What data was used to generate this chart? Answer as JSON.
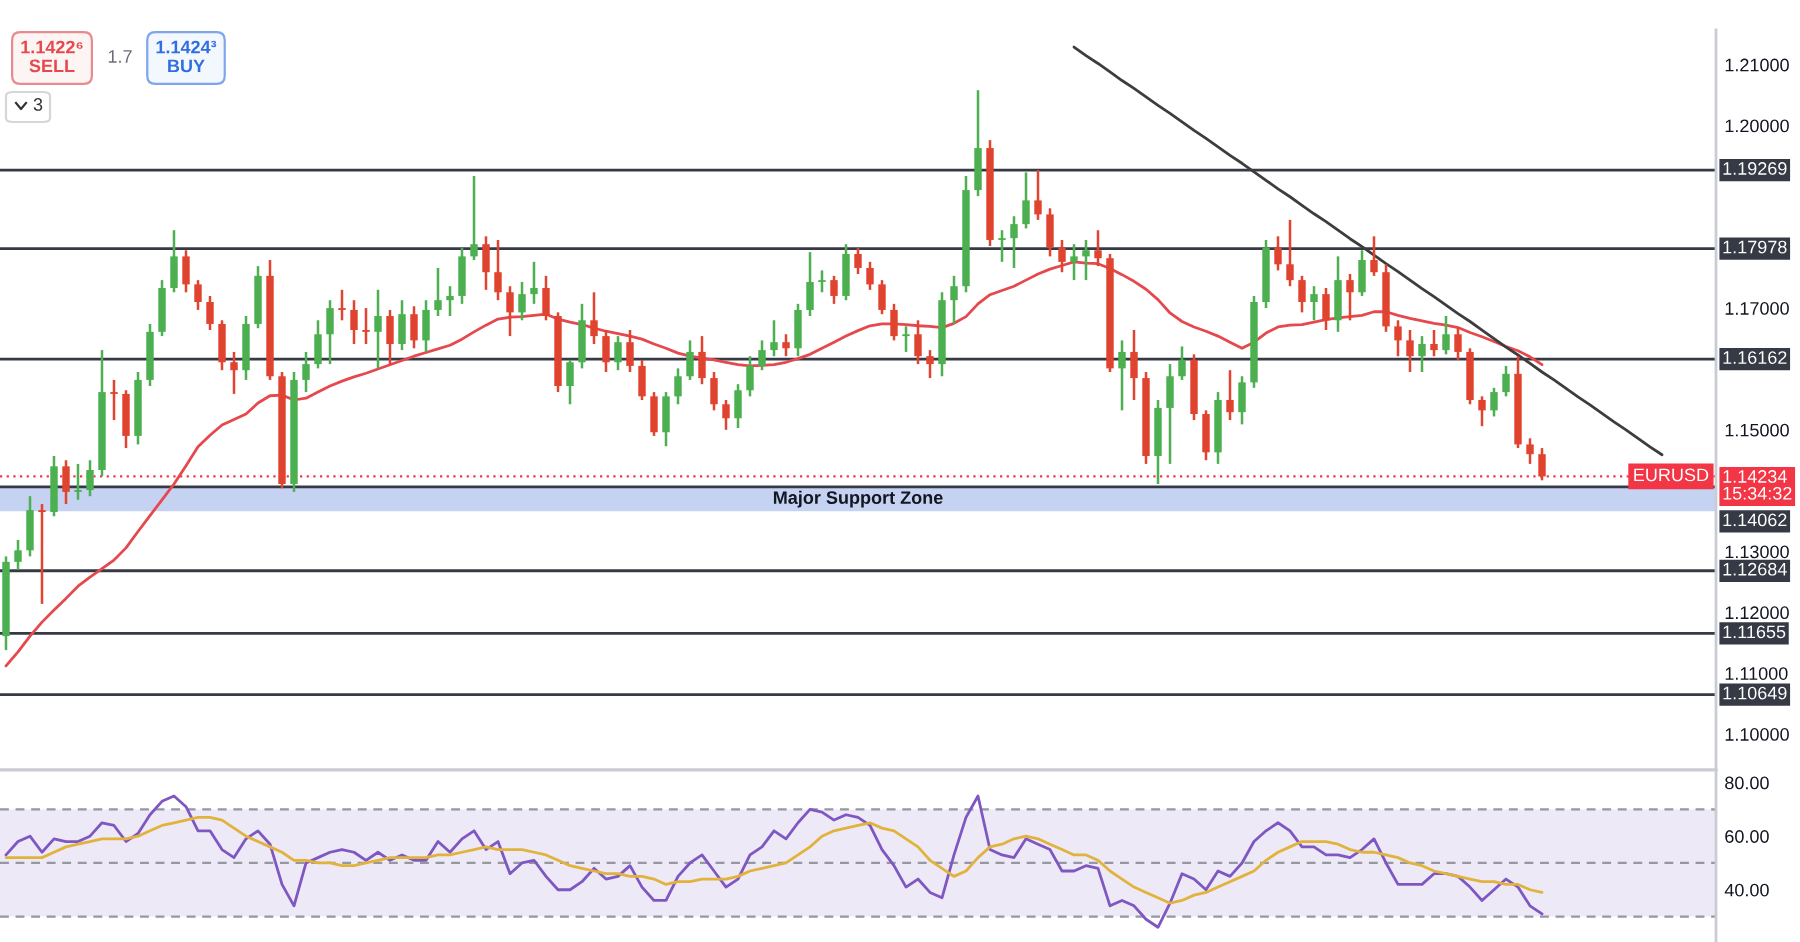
{
  "chart_data": [
    {
      "type": "candlestick",
      "categories": [
        null,
        null,
        null,
        null,
        null,
        null,
        null,
        null,
        null,
        null,
        null,
        null,
        null,
        null,
        null,
        null,
        null,
        null,
        null,
        null,
        null,
        null,
        null,
        null,
        null,
        null,
        null,
        null,
        null,
        null,
        null,
        null,
        null,
        null,
        null,
        null,
        null,
        null,
        null,
        null,
        null,
        null,
        null,
        null,
        null,
        null,
        null,
        null,
        null,
        null,
        null,
        null,
        null,
        null,
        null,
        null,
        null,
        null,
        null,
        null,
        null,
        null,
        null,
        null,
        null,
        null,
        null,
        null,
        null,
        null,
        null,
        null,
        null,
        null,
        null,
        null,
        null,
        null,
        null,
        null,
        null,
        null,
        null,
        null,
        null,
        null,
        null,
        null,
        null,
        null,
        null,
        null,
        null,
        null,
        null,
        null,
        null,
        null,
        null,
        null,
        null,
        null,
        null,
        null,
        null,
        null,
        null,
        null,
        null,
        null,
        null,
        null,
        null,
        null,
        null,
        null,
        null,
        null,
        null,
        null,
        null,
        null,
        null,
        null,
        null,
        null,
        null,
        null,
        null,
        null,
        null,
        null,
        null,
        null,
        null,
        null,
        null,
        null,
        null,
        null,
        null,
        null,
        null
      ],
      "ohlc": [
        [
          1.1161,
          1.1292,
          1.1138,
          1.1283
        ],
        [
          1.1283,
          1.1319,
          1.127,
          1.1302
        ],
        [
          1.1302,
          1.1391,
          1.1292,
          1.1368
        ],
        [
          1.1368,
          1.1378,
          1.1214,
          1.1365
        ],
        [
          1.1365,
          1.1457,
          1.1358,
          1.144
        ],
        [
          1.144,
          1.145,
          1.1378,
          1.1398
        ],
        [
          1.1398,
          1.1444,
          1.1385,
          1.1401
        ],
        [
          1.1401,
          1.145,
          1.1391,
          1.1434
        ],
        [
          1.1434,
          1.1631,
          1.1424,
          1.1562
        ],
        [
          1.1562,
          1.1582,
          1.1516,
          1.1559
        ],
        [
          1.1559,
          1.1565,
          1.147,
          1.149
        ],
        [
          1.149,
          1.1595,
          1.1476,
          1.1582
        ],
        [
          1.1582,
          1.1674,
          1.1572,
          1.1661
        ],
        [
          1.1661,
          1.1746,
          1.1654,
          1.1733
        ],
        [
          1.1733,
          1.1828,
          1.1726,
          1.1785
        ],
        [
          1.1785,
          1.1795,
          1.1726,
          1.1739
        ],
        [
          1.1739,
          1.1746,
          1.1697,
          1.171
        ],
        [
          1.171,
          1.172,
          1.1664,
          1.1674
        ],
        [
          1.1674,
          1.168,
          1.1598,
          1.1611
        ],
        [
          1.1611,
          1.1628,
          1.1559,
          1.1598
        ],
        [
          1.1598,
          1.1687,
          1.1582,
          1.1674
        ],
        [
          1.1674,
          1.1769,
          1.1667,
          1.1753
        ],
        [
          1.1753,
          1.1779,
          1.1582,
          1.1588
        ],
        [
          1.1588,
          1.1595,
          1.1404,
          1.1411
        ],
        [
          1.1411,
          1.1595,
          1.1398,
          1.1582
        ],
        [
          1.1582,
          1.1628,
          1.1562,
          1.1608
        ],
        [
          1.1608,
          1.168,
          1.1601,
          1.1657
        ],
        [
          1.1657,
          1.1713,
          1.1608,
          1.17
        ],
        [
          1.17,
          1.173,
          1.168,
          1.1697
        ],
        [
          1.1697,
          1.1713,
          1.1641,
          1.1664
        ],
        [
          1.1664,
          1.17,
          1.1641,
          1.1661
        ],
        [
          1.1661,
          1.173,
          1.1601,
          1.1687
        ],
        [
          1.1687,
          1.1697,
          1.1608,
          1.1641
        ],
        [
          1.1641,
          1.1713,
          1.1631,
          1.169
        ],
        [
          1.169,
          1.1703,
          1.1634,
          1.1647
        ],
        [
          1.1647,
          1.1713,
          1.1628,
          1.1697
        ],
        [
          1.1697,
          1.1766,
          1.1687,
          1.1713
        ],
        [
          1.1713,
          1.1736,
          1.1687,
          1.172
        ],
        [
          1.172,
          1.1799,
          1.1707,
          1.1785
        ],
        [
          1.1785,
          1.1917,
          1.1779,
          1.1805
        ],
        [
          1.1805,
          1.1818,
          1.173,
          1.1759
        ],
        [
          1.1759,
          1.1812,
          1.1713,
          1.1726
        ],
        [
          1.1726,
          1.1736,
          1.1654,
          1.1693
        ],
        [
          1.1693,
          1.1743,
          1.168,
          1.1723
        ],
        [
          1.1723,
          1.1776,
          1.1707,
          1.1733
        ],
        [
          1.1733,
          1.1753,
          1.168,
          1.1687
        ],
        [
          1.1687,
          1.1693,
          1.1562,
          1.1572
        ],
        [
          1.1572,
          1.1615,
          1.1542,
          1.1611
        ],
        [
          1.1611,
          1.1707,
          1.1601,
          1.168
        ],
        [
          1.168,
          1.1726,
          1.1641,
          1.1654
        ],
        [
          1.1654,
          1.1664,
          1.1595,
          1.1611
        ],
        [
          1.1611,
          1.1654,
          1.1598,
          1.1644
        ],
        [
          1.1644,
          1.1664,
          1.1595,
          1.1605
        ],
        [
          1.1605,
          1.1615,
          1.1549,
          1.1555
        ],
        [
          1.1555,
          1.1562,
          1.149,
          1.1496
        ],
        [
          1.1496,
          1.1562,
          1.1473,
          1.1555
        ],
        [
          1.1555,
          1.1601,
          1.1542,
          1.1588
        ],
        [
          1.1588,
          1.1647,
          1.1582,
          1.1628
        ],
        [
          1.1628,
          1.1654,
          1.1575,
          1.1585
        ],
        [
          1.1585,
          1.1595,
          1.1532,
          1.1542
        ],
        [
          1.1542,
          1.1549,
          1.15,
          1.1519
        ],
        [
          1.1519,
          1.1575,
          1.1503,
          1.1565
        ],
        [
          1.1565,
          1.1621,
          1.1555,
          1.1605
        ],
        [
          1.1605,
          1.1647,
          1.1598,
          1.1631
        ],
        [
          1.1631,
          1.168,
          1.1621,
          1.1644
        ],
        [
          1.1644,
          1.1657,
          1.1621,
          1.1634
        ],
        [
          1.1634,
          1.1707,
          1.1621,
          1.1697
        ],
        [
          1.1697,
          1.1792,
          1.1687,
          1.1743
        ],
        [
          1.1743,
          1.1762,
          1.1726,
          1.1746
        ],
        [
          1.1746,
          1.1753,
          1.1707,
          1.172
        ],
        [
          1.172,
          1.1805,
          1.1713,
          1.1789
        ],
        [
          1.1789,
          1.1799,
          1.1756,
          1.1766
        ],
        [
          1.1766,
          1.1776,
          1.173,
          1.1739
        ],
        [
          1.1739,
          1.1746,
          1.169,
          1.1697
        ],
        [
          1.1697,
          1.1707,
          1.1647,
          1.1654
        ],
        [
          1.1654,
          1.167,
          1.1628,
          1.1657
        ],
        [
          1.1657,
          1.168,
          1.1608,
          1.1621
        ],
        [
          1.1621,
          1.1631,
          1.1585,
          1.1608
        ],
        [
          1.1608,
          1.1726,
          1.1588,
          1.1713
        ],
        [
          1.1713,
          1.1753,
          1.1674,
          1.1736
        ],
        [
          1.1736,
          1.1917,
          1.1726,
          1.1894
        ],
        [
          1.1894,
          1.2058,
          1.1884,
          1.1963
        ],
        [
          1.1963,
          1.1976,
          1.1802,
          1.1812
        ],
        [
          1.1812,
          1.1828,
          1.1776,
          1.1815
        ],
        [
          1.1815,
          1.1851,
          1.1766,
          1.1838
        ],
        [
          1.1838,
          1.1923,
          1.1831,
          1.1877
        ],
        [
          1.1877,
          1.1927,
          1.1845,
          1.1854
        ],
        [
          1.1854,
          1.1864,
          1.1785,
          1.1799
        ],
        [
          1.1799,
          1.1812,
          1.1759,
          1.1776
        ],
        [
          1.1776,
          1.1805,
          1.1746,
          1.1785
        ],
        [
          1.1785,
          1.1812,
          1.1746,
          1.1795
        ],
        [
          1.1795,
          1.1828,
          1.1769,
          1.1782
        ],
        [
          1.1782,
          1.1789,
          1.1595,
          1.1601
        ],
        [
          1.1601,
          1.1647,
          1.1532,
          1.1628
        ],
        [
          1.1628,
          1.1664,
          1.1549,
          1.1585
        ],
        [
          1.1585,
          1.1595,
          1.1444,
          1.1457
        ],
        [
          1.1457,
          1.1549,
          1.1411,
          1.1536
        ],
        [
          1.1536,
          1.1608,
          1.1444,
          1.1588
        ],
        [
          1.1588,
          1.1637,
          1.1582,
          1.1615
        ],
        [
          1.1615,
          1.1624,
          1.1516,
          1.1526
        ],
        [
          1.1526,
          1.1532,
          1.145,
          1.1463
        ],
        [
          1.1463,
          1.1562,
          1.1444,
          1.1549
        ],
        [
          1.1549,
          1.1598,
          1.1516,
          1.1529
        ],
        [
          1.1529,
          1.1588,
          1.1509,
          1.1578
        ],
        [
          1.1578,
          1.172,
          1.1569,
          1.171
        ],
        [
          1.171,
          1.1812,
          1.17,
          1.1799
        ],
        [
          1.1799,
          1.1818,
          1.1762,
          1.1772
        ],
        [
          1.1772,
          1.1845,
          1.1736,
          1.1746
        ],
        [
          1.1746,
          1.1753,
          1.1693,
          1.171
        ],
        [
          1.171,
          1.1736,
          1.168,
          1.1723
        ],
        [
          1.1723,
          1.1733,
          1.1664,
          1.168
        ],
        [
          1.168,
          1.1785,
          1.1661,
          1.1746
        ],
        [
          1.1746,
          1.1756,
          1.168,
          1.1726
        ],
        [
          1.1726,
          1.1795,
          1.172,
          1.1779
        ],
        [
          1.1779,
          1.1818,
          1.1753,
          1.1759
        ],
        [
          1.1759,
          1.1772,
          1.1661,
          1.167
        ],
        [
          1.167,
          1.168,
          1.1621,
          1.1647
        ],
        [
          1.1647,
          1.1664,
          1.1595,
          1.1621
        ],
        [
          1.1621,
          1.1654,
          1.1595,
          1.1641
        ],
        [
          1.1641,
          1.1664,
          1.1621,
          1.1631
        ],
        [
          1.1631,
          1.1687,
          1.1624,
          1.1657
        ],
        [
          1.1657,
          1.1667,
          1.1615,
          1.1628
        ],
        [
          1.1628,
          1.1634,
          1.1542,
          1.1549
        ],
        [
          1.1549,
          1.1555,
          1.1506,
          1.1532
        ],
        [
          1.1532,
          1.1569,
          1.1522,
          1.1562
        ],
        [
          1.1562,
          1.1605,
          1.1555,
          1.1592
        ],
        [
          1.1592,
          1.1621,
          1.147,
          1.1476
        ],
        [
          1.1476,
          1.1486,
          1.1444,
          1.146
        ],
        [
          1.146,
          1.147,
          1.1417,
          1.14234
        ],
        null,
        null,
        null,
        null,
        null,
        null,
        null,
        null,
        null,
        null,
        null,
        null,
        null,
        null
      ],
      "colors": [
        "#4caf50",
        "#4caf50",
        "#4caf50",
        "#e0432f",
        "#4caf50",
        "#e0432f",
        "#4caf50",
        "#4caf50",
        "#4caf50",
        "#e0432f",
        "#e0432f",
        "#4caf50",
        "#4caf50",
        "#4caf50",
        "#4caf50",
        "#e0432f",
        "#e0432f",
        "#e0432f",
        "#e0432f",
        "#e0432f",
        "#4caf50",
        "#4caf50",
        "#e0432f",
        "#e0432f",
        "#4caf50",
        "#4caf50",
        "#4caf50",
        "#4caf50",
        "#e0432f",
        "#e0432f",
        "#e0432f",
        "#4caf50",
        "#e0432f",
        "#4caf50",
        "#e0432f",
        "#4caf50",
        "#4caf50",
        "#4caf50",
        "#4caf50",
        "#4caf50",
        "#e0432f",
        "#e0432f",
        "#e0432f",
        "#4caf50",
        "#4caf50",
        "#e0432f",
        "#e0432f",
        "#4caf50",
        "#4caf50",
        "#e0432f",
        "#e0432f",
        "#4caf50",
        "#e0432f",
        "#e0432f",
        "#e0432f",
        "#4caf50",
        "#4caf50",
        "#4caf50",
        "#e0432f",
        "#e0432f",
        "#e0432f",
        "#4caf50",
        "#4caf50",
        "#4caf50",
        "#4caf50",
        "#e0432f",
        "#4caf50",
        "#4caf50",
        "#4caf50",
        "#e0432f",
        "#4caf50",
        "#e0432f",
        "#e0432f",
        "#e0432f",
        "#e0432f",
        "#4caf50",
        "#e0432f",
        "#e0432f",
        "#4caf50",
        "#4caf50",
        "#4caf50",
        "#4caf50",
        "#e0432f",
        "#4caf50",
        "#4caf50",
        "#4caf50",
        "#e0432f",
        "#e0432f",
        "#e0432f",
        "#4caf50",
        "#4caf50",
        "#e0432f",
        "#e0432f",
        "#4caf50",
        "#e0432f",
        "#e0432f",
        "#4caf50",
        "#4caf50",
        "#4caf50",
        "#e0432f",
        "#e0432f",
        "#4caf50",
        "#e0432f",
        "#4caf50",
        "#4caf50",
        "#4caf50",
        "#e0432f",
        "#e0432f",
        "#e0432f",
        "#4caf50",
        "#e0432f",
        "#4caf50",
        "#e0432f",
        "#4caf50",
        "#e0432f",
        "#e0432f",
        "#e0432f",
        "#e0432f",
        "#4caf50",
        "#e0432f",
        "#4caf50",
        "#e0432f",
        "#e0432f",
        "#e0432f",
        "#4caf50",
        "#4caf50",
        "#e0432f",
        "#e0432f",
        "#e0432f",
        null,
        null,
        null,
        null,
        null,
        null,
        null,
        null,
        null,
        null,
        null,
        null,
        null,
        null
      ],
      "series": [
        {
          "type": "line",
          "color": "#e5484d",
          "values": [
            1.1112,
            1.1135,
            1.1161,
            1.1184,
            1.1204,
            1.1223,
            1.1243,
            1.1258,
            1.1272,
            1.1286,
            1.1306,
            1.1333,
            1.1359,
            1.1385,
            1.1411,
            1.1441,
            1.1472,
            1.1491,
            1.1508,
            1.1517,
            1.1526,
            1.1544,
            1.1556,
            1.1557,
            1.1549,
            1.1552,
            1.1562,
            1.1572,
            1.158,
            1.1587,
            1.1593,
            1.16,
            1.1607,
            1.1614,
            1.1621,
            1.1627,
            1.1633,
            1.1639,
            1.1649,
            1.1661,
            1.1672,
            1.1682,
            1.1685,
            1.1686,
            1.1688,
            1.169,
            1.1682,
            1.1677,
            1.1673,
            1.1667,
            1.1662,
            1.1658,
            1.1654,
            1.1649,
            1.1641,
            1.1634,
            1.1626,
            1.1621,
            1.1618,
            1.1615,
            1.1611,
            1.1607,
            1.1605,
            1.1606,
            1.1607,
            1.1611,
            1.1617,
            1.1624,
            1.1634,
            1.1644,
            1.1654,
            1.1663,
            1.1671,
            1.1674,
            1.1674,
            1.1673,
            1.1671,
            1.167,
            1.1668,
            1.1675,
            1.1686,
            1.1707,
            1.1722,
            1.1729,
            1.1736,
            1.1746,
            1.1756,
            1.1764,
            1.177,
            1.1776,
            1.1774,
            1.1773,
            1.1765,
            1.1755,
            1.1744,
            1.1731,
            1.1714,
            1.1692,
            1.1678,
            1.1669,
            1.1662,
            1.1654,
            1.1644,
            1.1634,
            1.1644,
            1.1659,
            1.1669,
            1.1672,
            1.1673,
            1.1677,
            1.1681,
            1.1684,
            1.1686,
            1.1688,
            1.1694,
            1.1694,
            1.1688,
            1.1683,
            1.1679,
            1.1675,
            1.1672,
            1.1668,
            1.166,
            1.1653,
            1.1645,
            1.1637,
            1.163,
            1.162,
            1.1607,
            null,
            null,
            null,
            null,
            null,
            null,
            null,
            null,
            null,
            null,
            null,
            null,
            null,
            null
          ]
        },
        {
          "type": "line",
          "color": "#3d3d3d",
          "values": [
            null,
            null,
            null,
            null,
            null,
            null,
            null,
            null,
            null,
            null,
            null,
            null,
            null,
            null,
            null,
            null,
            null,
            null,
            null,
            null,
            null,
            null,
            null,
            null,
            null,
            null,
            null,
            null,
            null,
            null,
            null,
            null,
            null,
            null,
            null,
            null,
            null,
            null,
            null,
            null,
            null,
            null,
            null,
            null,
            null,
            null,
            null,
            null,
            null,
            null,
            null,
            null,
            null,
            null,
            null,
            null,
            null,
            null,
            null,
            null,
            null,
            null,
            null,
            null,
            null,
            null,
            null,
            null,
            null,
            null,
            null,
            null,
            null,
            null,
            null,
            null,
            null,
            null,
            null,
            null,
            null,
            null,
            null,
            null,
            null,
            null,
            null,
            null,
            null,
            1.2129,
            1.2115,
            1.2102,
            1.2088,
            1.2074,
            1.2061,
            1.2047,
            1.2033,
            1.202,
            1.2006,
            1.1992,
            1.1979,
            1.1965,
            1.1951,
            1.1938,
            1.1924,
            1.191,
            1.1896,
            1.1883,
            1.1869,
            1.1855,
            1.1842,
            1.1828,
            1.1814,
            1.1801,
            1.1787,
            1.1773,
            1.176,
            1.1746,
            1.1732,
            1.1719,
            1.1705,
            1.1691,
            1.1678,
            1.1664,
            1.165,
            1.1636,
            1.1623,
            1.1609,
            1.1595,
            1.1582,
            1.1568,
            1.1554,
            1.1541,
            1.1527,
            1.1513,
            1.15,
            1.1486,
            1.1472,
            1.1459,
            null,
            null,
            null,
            null
          ]
        }
      ],
      "ylim": [
        1.0941,
        1.2157
      ],
      "yticks": [
        {
          "value": 1.1,
          "label": "1.10000"
        },
        {
          "value": 1.11,
          "label": "1.11000"
        },
        {
          "value": 1.12,
          "label": "1.12000"
        },
        {
          "value": 1.13,
          "label": "1.13000"
        },
        {
          "value": 1.15,
          "label": "1.15000"
        },
        {
          "value": 1.17,
          "label": "1.17000"
        },
        {
          "value": 1.2,
          "label": "1.20000"
        },
        {
          "value": 1.21,
          "label": "1.21000"
        }
      ],
      "ref_lines": [
        {
          "axis": "y",
          "value": 1.19269,
          "label": "1.19269",
          "color": "#363a45"
        },
        {
          "axis": "y",
          "value": 1.17978,
          "label": "1.17978",
          "color": "#363a45"
        },
        {
          "axis": "y",
          "value": 1.16162,
          "label": "1.16162",
          "color": "#363a45"
        },
        {
          "axis": "y",
          "value": 1.14062,
          "label": "1.14062",
          "color": "#363a45"
        },
        {
          "axis": "y",
          "value": 1.12684,
          "label": "1.12684",
          "color": "#363a45"
        },
        {
          "axis": "y",
          "value": 1.11655,
          "label": "1.11655",
          "color": "#363a45"
        },
        {
          "axis": "y",
          "value": 1.10649,
          "label": "1.10649",
          "color": "#363a45"
        },
        {
          "axis": "y",
          "value": 1.14234,
          "label": "1.14234\n15:34:32",
          "color": "#f23645",
          "line_style": "dotted"
        }
      ],
      "bands": [
        {
          "axis": "y",
          "from": 1.1366,
          "to": 1.14062,
          "label": "Major Support Zone",
          "color": "#c5d2f2"
        }
      ],
      "annotations": [
        {
          "text": "EURUSD",
          "y": 1.14234
        },
        "1.1422⁶\nSELL",
        "1.7",
        "1.1424³\nBUY",
        "3"
      ],
      "tick_labels": "y"
    },
    {
      "type": "line",
      "categories": [
        null,
        null,
        null,
        null,
        null,
        null,
        null,
        null,
        null,
        null,
        null,
        null,
        null,
        null,
        null,
        null,
        null,
        null,
        null,
        null,
        null,
        null,
        null,
        null,
        null,
        null,
        null,
        null,
        null,
        null,
        null,
        null,
        null,
        null,
        null,
        null,
        null,
        null,
        null,
        null,
        null,
        null,
        null,
        null,
        null,
        null,
        null,
        null,
        null,
        null,
        null,
        null,
        null,
        null,
        null,
        null,
        null,
        null,
        null,
        null,
        null,
        null,
        null,
        null,
        null,
        null,
        null,
        null,
        null,
        null,
        null,
        null,
        null,
        null,
        null,
        null,
        null,
        null,
        null,
        null,
        null,
        null,
        null,
        null,
        null,
        null,
        null,
        null,
        null,
        null,
        null,
        null,
        null,
        null,
        null,
        null,
        null,
        null,
        null,
        null,
        null,
        null,
        null,
        null,
        null,
        null,
        null,
        null,
        null,
        null,
        null,
        null,
        null,
        null,
        null,
        null,
        null,
        null,
        null,
        null,
        null,
        null,
        null,
        null,
        null,
        null,
        null,
        null,
        null,
        null,
        null,
        null,
        null,
        null,
        null,
        null,
        null,
        null,
        null,
        null,
        null,
        null,
        null
      ],
      "series": [
        {
          "color": "#7e57c2",
          "values": [
            53,
            58,
            60,
            54,
            59,
            58,
            58,
            60,
            65,
            64,
            58,
            61,
            68,
            73,
            75,
            71,
            62,
            62,
            55,
            52,
            59,
            62,
            57,
            42,
            34,
            50,
            52,
            54,
            55,
            54,
            51,
            54,
            51,
            53,
            51,
            51,
            58,
            54,
            59,
            62,
            55,
            58,
            46,
            50,
            51,
            45,
            40,
            40,
            43,
            48,
            44,
            45,
            49,
            41,
            36,
            36,
            45,
            50,
            53,
            47,
            41,
            44,
            53,
            56,
            62,
            59,
            65,
            70,
            69,
            66,
            68,
            67,
            64,
            55,
            49,
            41,
            44,
            39,
            37,
            53,
            67,
            75,
            55,
            53,
            52,
            59,
            57,
            55,
            47,
            47,
            49,
            48,
            34,
            36,
            34,
            29,
            26,
            35,
            46,
            44,
            40,
            47,
            45,
            50,
            58,
            62,
            65,
            62,
            56,
            56,
            53,
            53,
            52,
            55,
            59,
            50,
            42,
            42,
            42,
            46,
            46,
            45,
            41,
            36,
            40,
            44,
            41,
            34,
            31,
            null,
            null,
            null,
            null,
            null,
            null,
            null,
            null,
            null,
            null,
            null,
            null,
            null,
            null
          ]
        },
        {
          "color": "#e2b33c",
          "values": [
            52,
            52,
            52,
            52,
            54,
            56,
            57,
            58,
            59,
            59,
            59,
            60,
            62,
            64,
            65,
            66,
            67,
            67,
            66,
            63,
            60,
            58,
            56,
            54,
            51,
            51,
            50,
            50,
            49,
            49,
            50,
            51,
            52,
            52,
            52,
            52,
            53,
            53,
            54,
            55,
            56,
            55,
            55,
            55,
            54,
            53,
            51,
            49,
            48,
            47,
            46,
            46,
            45,
            45,
            44,
            42,
            43,
            43,
            44,
            44,
            44,
            45,
            47,
            48,
            49,
            50,
            53,
            56,
            60,
            62,
            63,
            64,
            65,
            63,
            62,
            59,
            56,
            51,
            48,
            45,
            47,
            52,
            56,
            57,
            59,
            60,
            59,
            57,
            55,
            53,
            53,
            51,
            47,
            44,
            41,
            39,
            37,
            35,
            36,
            38,
            39,
            41,
            43,
            45,
            47,
            51,
            54,
            56,
            58,
            58,
            58,
            57,
            55,
            54,
            54,
            53,
            52,
            50,
            49,
            47,
            46,
            45,
            44,
            43,
            43,
            42,
            42,
            40,
            39,
            null,
            null,
            null,
            null,
            null,
            null,
            null,
            null,
            null,
            null,
            null,
            null,
            null,
            null
          ]
        }
      ],
      "ylim": [
        20.5,
        84.7
      ],
      "yticks": [
        {
          "value": 40,
          "label": "40.00"
        },
        {
          "value": 60,
          "label": "60.00"
        },
        {
          "value": 80,
          "label": "80.00"
        }
      ],
      "ref_lines": [
        {
          "axis": "y",
          "value": 70,
          "color": "#9598a1",
          "line_style": "dashed"
        },
        {
          "axis": "y",
          "value": 50,
          "color": "#9598a1",
          "line_style": "dashed"
        },
        {
          "axis": "y",
          "value": 30,
          "color": "#9598a1",
          "line_style": "dashed"
        }
      ],
      "bands": [
        {
          "axis": "y",
          "from": 30,
          "to": 70,
          "color": "#ede9f6"
        }
      ],
      "tick_labels": "y"
    }
  ]
}
